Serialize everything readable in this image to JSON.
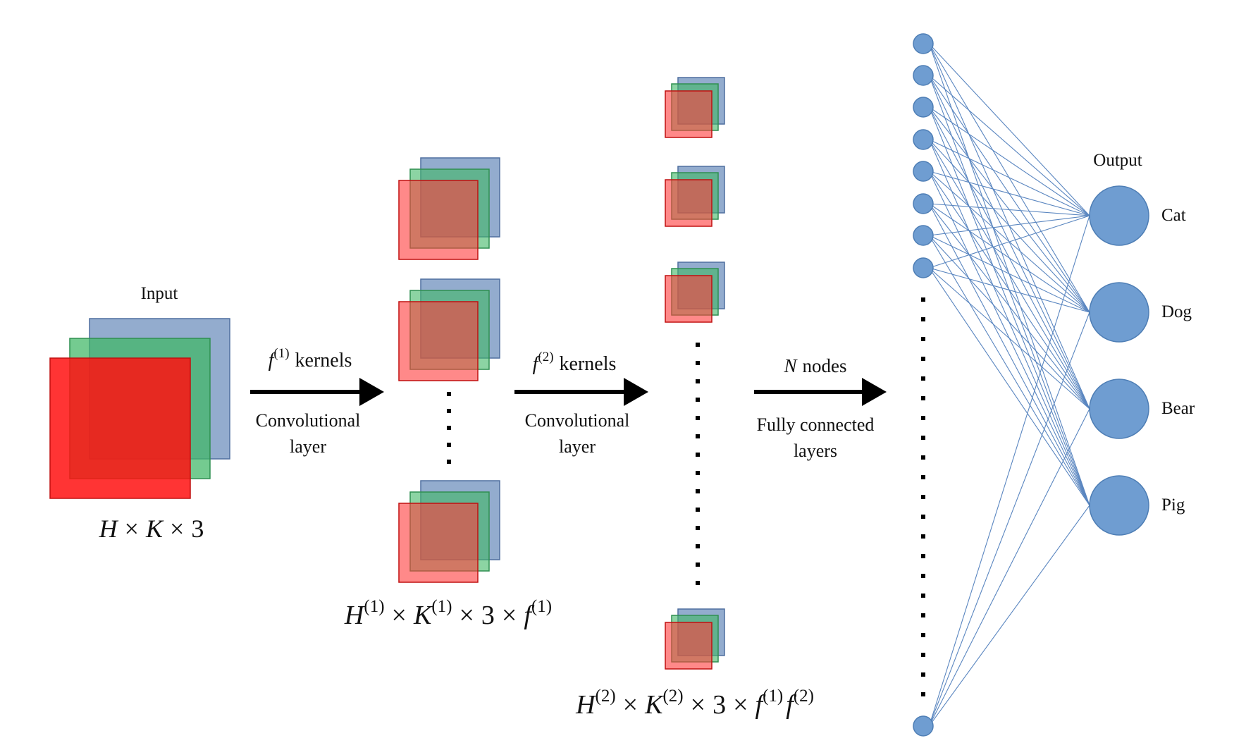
{
  "input": {
    "title": "Input",
    "dims": {
      "v1": "H",
      "op1": "×",
      "v2": "K",
      "op2": "×",
      "n": "3"
    }
  },
  "arrow1": {
    "var": "f",
    "sup": "(1)",
    "suffix": "kernels",
    "caption1": "Convolutional",
    "caption2": "layer"
  },
  "arrow2": {
    "var": "f",
    "sup": "(2)",
    "suffix": "kernels",
    "caption1": "Convolutional",
    "caption2": "layer"
  },
  "arrow3": {
    "var": "N",
    "suffix": "nodes",
    "caption1": "Fully connected",
    "caption2": "layers"
  },
  "layer1_dims": {
    "v1": "H",
    "s1": "(1)",
    "op1": "×",
    "v2": "K",
    "s2": "(1)",
    "op2": "×",
    "n": "3",
    "op3": "×",
    "v3": "f",
    "s3": "(1)"
  },
  "layer2_dims": {
    "v1": "H",
    "s1": "(2)",
    "op1": "×",
    "v2": "K",
    "s2": "(2)",
    "op2": "×",
    "n": "3",
    "op3": "×",
    "v3": "f",
    "s3": "(1)",
    "v4": "f",
    "s4": "(2)"
  },
  "output": {
    "title": "Output",
    "classes": [
      "Cat",
      "Dog",
      "Bear",
      "Pig"
    ]
  },
  "colors": {
    "red": "#ff2a2a",
    "green": "#3fb765",
    "blue": "#6f90bd",
    "node": "#6f9dd1",
    "node_stroke": "#4e7eb5",
    "edge": "#5a86c0"
  }
}
